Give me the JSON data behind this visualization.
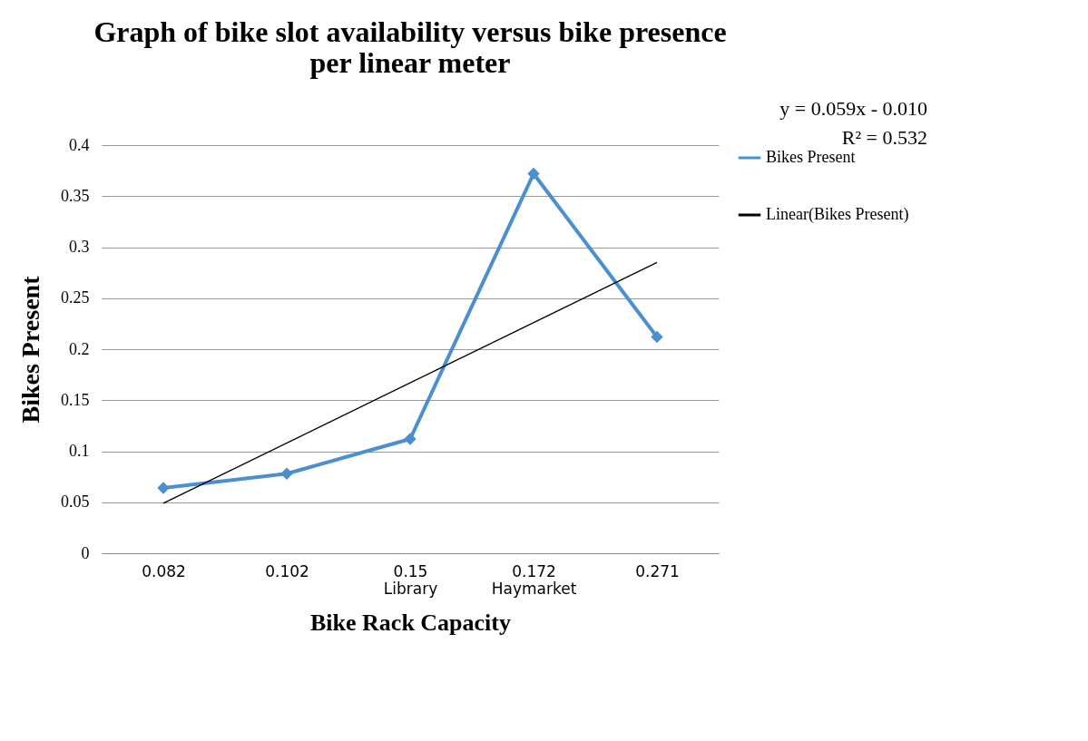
{
  "chart_data": {
    "type": "line",
    "title": [
      "Graph of bike slot availability versus bike presence",
      "per linear meter"
    ],
    "xlabel": "Bike Rack Capacity",
    "ylabel": "Bikes Present",
    "categories": [
      "0.082",
      "0.102",
      "0.15\nLibrary",
      "0.172\nHaymarket",
      "0.271"
    ],
    "series": [
      {
        "name": "Bikes Present",
        "color": "#4a8fd0",
        "values": [
          0.064,
          0.078,
          0.112,
          0.372,
          0.212
        ],
        "marker": "diamond"
      },
      {
        "name": "Linear(Bikes Present)",
        "color": "#000000",
        "type": "line",
        "x": [
          "0.082",
          "0.271"
        ],
        "values": [
          0.049,
          0.285
        ],
        "marker": "none"
      }
    ],
    "ylim": [
      0,
      0.4
    ],
    "yticks": [
      0,
      0.05,
      0.1,
      0.15,
      0.2,
      0.25,
      0.3,
      0.35,
      0.4
    ],
    "grid": "y",
    "legend": "right",
    "annotations": [
      "y = 0.059x - 0.010",
      "R² = 0.532"
    ]
  }
}
